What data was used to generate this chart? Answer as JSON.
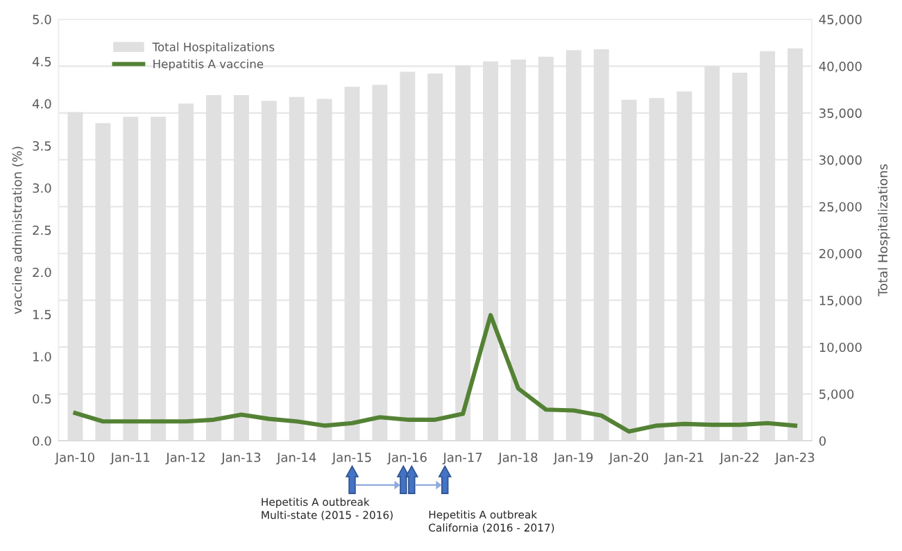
{
  "chart_data": {
    "type": "bar",
    "categories": [
      "Jan-10",
      null,
      "Jan-11",
      null,
      "Jan-12",
      null,
      "Jan-13",
      null,
      "Jan-14",
      null,
      "Jan-15",
      null,
      "Jan-16",
      null,
      "Jan-17",
      null,
      "Jan-18",
      null,
      "Jan-19",
      null,
      "Jan-20",
      null,
      "Jan-21",
      null,
      "Jan-22",
      null,
      "Jan-23"
    ],
    "series": [
      {
        "name": "Total Hospitalizations",
        "axis": "y2",
        "color": "#e0e0e0",
        "values": [
          35100,
          33900,
          34600,
          34600,
          36000,
          36900,
          36900,
          36300,
          36700,
          36500,
          37800,
          38000,
          39400,
          39200,
          40100,
          40500,
          40700,
          41000,
          41700,
          41800,
          36400,
          36600,
          37300,
          40000,
          39300,
          41600,
          41900
        ]
      },
      {
        "name": "Hepatitis A vaccine",
        "type": "line",
        "color": "#548235",
        "values": [
          0.33,
          0.23,
          0.23,
          0.23,
          0.23,
          0.25,
          0.31,
          0.26,
          0.23,
          0.18,
          0.21,
          0.28,
          0.25,
          0.25,
          0.32,
          1.49,
          0.62,
          0.37,
          0.36,
          0.3,
          0.11,
          0.18,
          0.2,
          0.19,
          0.19,
          0.21,
          0.18
        ]
      }
    ],
    "ylabel": "vaccine administration (%)",
    "y2label": "Total Hospitalizations",
    "ylim": [
      0,
      5
    ],
    "yticks": [
      {
        "value": 0,
        "label": "0.0"
      },
      {
        "value": 0.5,
        "label": "0.5"
      },
      {
        "value": 1,
        "label": "1.0"
      },
      {
        "value": 1.5,
        "label": "1.5"
      },
      {
        "value": 2,
        "label": "2.0"
      },
      {
        "value": 2.5,
        "label": "2.5"
      },
      {
        "value": 3,
        "label": "3.0"
      },
      {
        "value": 3.5,
        "label": "3.5"
      },
      {
        "value": 4,
        "label": "4.0"
      },
      {
        "value": 4.5,
        "label": "4.5"
      },
      {
        "value": 5,
        "label": "5.0"
      }
    ],
    "y2lim": [
      0,
      45000
    ],
    "y2ticks": [
      0,
      {
        "value": 5000,
        "label": "5,000"
      },
      {
        "value": 10000,
        "label": "10,000"
      },
      {
        "value": 15000,
        "label": "15,000"
      },
      {
        "value": 20000,
        "label": "20,000"
      },
      {
        "value": 25000,
        "label": "25,000"
      },
      {
        "value": 30000,
        "label": "30,000"
      },
      {
        "value": 35000,
        "label": "35,000"
      },
      {
        "value": 40000,
        "label": "40,000"
      },
      {
        "value": 45000,
        "label": "45,000"
      }
    ],
    "annotations": [
      "Hepetitis A outbreak\nMulti-state (2015 - 2016)",
      "Hepetitis A outbreak\nCalifornia (2016 - 2017)"
    ],
    "grid": "y",
    "legend": "top left",
    "marker": "none",
    "line_style": "solid"
  }
}
